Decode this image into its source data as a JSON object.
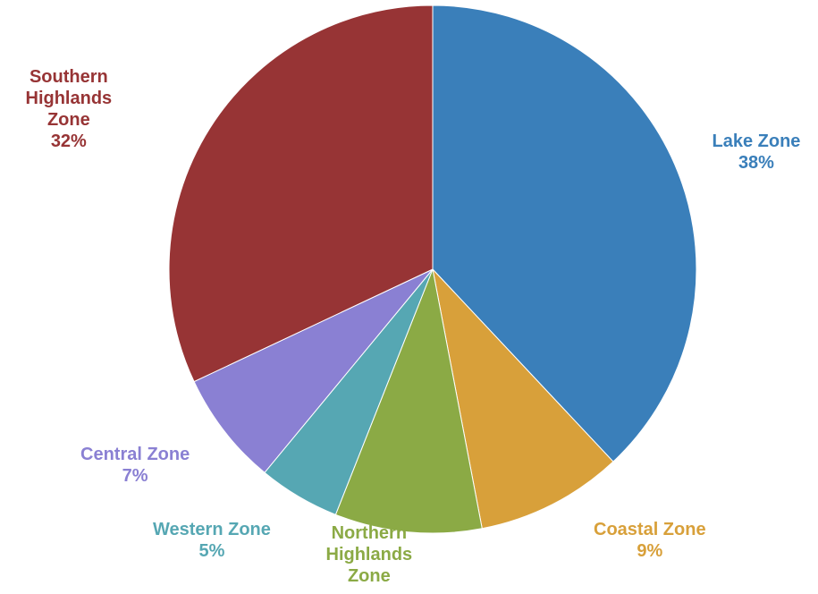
{
  "chart_data": {
    "type": "pie",
    "title": "",
    "slices": [
      {
        "name": "Lake Zone",
        "value": 38,
        "label": "Lake Zone\n38%",
        "color": "#3A7FBA"
      },
      {
        "name": "Coastal Zone",
        "value": 9,
        "label": "Coastal Zone\n9%",
        "color": "#D8A03A"
      },
      {
        "name": "Northern Highlands Zone",
        "value": 9,
        "label": "Northern\nHighlands\nZone",
        "color": "#8BAA45"
      },
      {
        "name": "Western Zone",
        "value": 5,
        "label": "Western Zone\n5%",
        "color": "#56A7B3"
      },
      {
        "name": "Central Zone",
        "value": 7,
        "label": "Central Zone\n7%",
        "color": "#8A80D3"
      },
      {
        "name": "Southern Highlands Zone",
        "value": 32,
        "label": "Southern\nHighlands\nZone\n32%",
        "color": "#973435"
      }
    ]
  }
}
